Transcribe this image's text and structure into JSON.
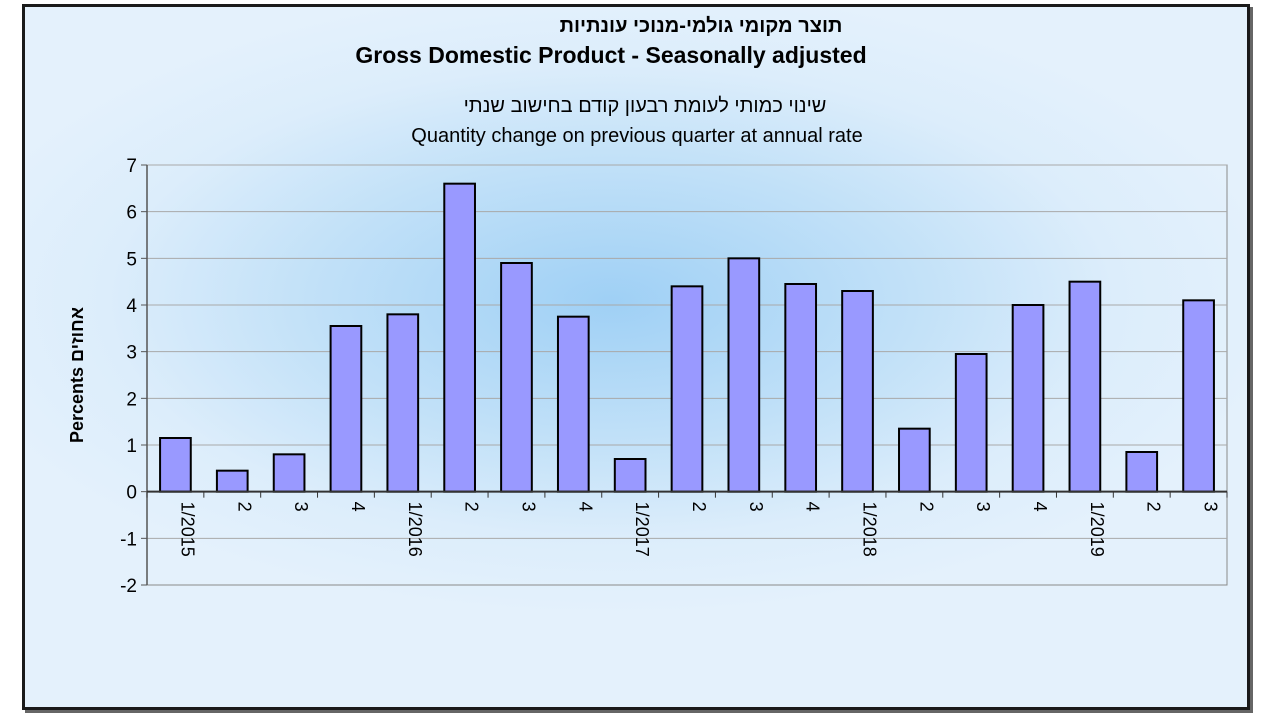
{
  "chart_data": {
    "type": "bar",
    "title_he": "תוצר מקומי גולמי-מנוכי עונתיות",
    "title": "Gross Domestic Product - Seasonally adjusted",
    "subtitle_he": "שינוי כמותי לעומת רבעון קודם בחישוב שנתי",
    "subtitle": "Quantity change on previous quarter at annual rate",
    "xlabel": "",
    "ylabel": "Percents אחוזים",
    "ylim": [
      -2,
      7
    ],
    "yticks": [
      -2,
      -1,
      0,
      1,
      2,
      3,
      4,
      5,
      6,
      7
    ],
    "grid": true,
    "categories": [
      "1/2015",
      "2",
      "3",
      "4",
      "1/2016",
      "2",
      "3",
      "4",
      "1/2017",
      "2",
      "3",
      "4",
      "1/2018",
      "2",
      "3",
      "4",
      "1/2019",
      "2",
      "3"
    ],
    "values": [
      1.15,
      0.45,
      0.8,
      3.55,
      3.8,
      6.6,
      4.9,
      3.75,
      0.7,
      4.4,
      5.0,
      4.45,
      4.3,
      1.35,
      2.95,
      4.0,
      4.5,
      0.85,
      4.1
    ],
    "bar_color": "#9999ff",
    "bar_edge_color": "#000000"
  }
}
